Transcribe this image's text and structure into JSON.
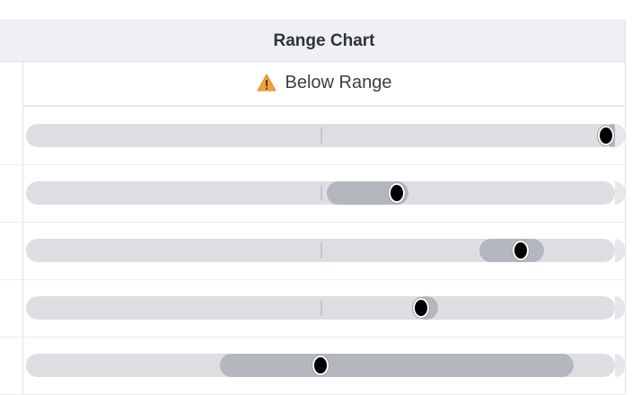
{
  "table": {
    "column_header": "Range Chart",
    "status": {
      "icon": "warning-icon",
      "label": "Below Range",
      "icon_color": "#f0a33a"
    }
  },
  "rows": [
    {
      "range_start": 0.985,
      "range_end": 1.0,
      "marker": 0.985
    },
    {
      "range_start": 0.51,
      "range_end": 0.65,
      "marker": 0.63
    },
    {
      "range_start": 0.77,
      "range_end": 0.88,
      "marker": 0.84
    },
    {
      "range_start": 0.66,
      "range_end": 0.7,
      "marker": 0.67
    },
    {
      "range_start": 0.33,
      "range_end": 0.93,
      "marker": 0.5
    }
  ],
  "colors": {
    "track": "#dcdee2",
    "range": "#b4b7be",
    "marker": "#000000"
  }
}
